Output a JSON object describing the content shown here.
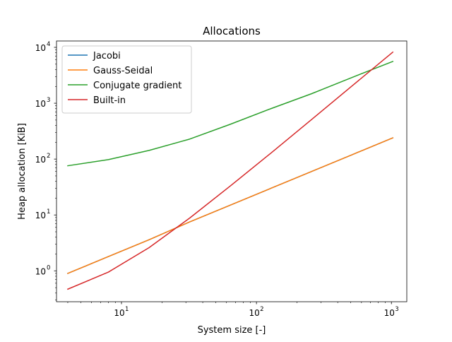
{
  "chart_data": {
    "type": "line",
    "title": "Allocations",
    "xlabel": "System size [-]",
    "ylabel": "Heap allocation [KiB]",
    "xscale": "log",
    "yscale": "log",
    "xlim": [
      3.3,
      1300
    ],
    "ylim": [
      0.28,
      13000
    ],
    "xticks": [
      {
        "base": "10",
        "exp": "1",
        "value": 10
      },
      {
        "base": "10",
        "exp": "2",
        "value": 100
      },
      {
        "base": "10",
        "exp": "3",
        "value": 1000
      }
    ],
    "yticks": [
      {
        "base": "10",
        "exp": "0",
        "value": 1
      },
      {
        "base": "10",
        "exp": "1",
        "value": 10
      },
      {
        "base": "10",
        "exp": "2",
        "value": 100
      },
      {
        "base": "10",
        "exp": "3",
        "value": 1000
      },
      {
        "base": "10",
        "exp": "4",
        "value": 10000
      }
    ],
    "grid": false,
    "legend_position": "top-left",
    "x": [
      4,
      8,
      16,
      32,
      64,
      128,
      256,
      512,
      1024
    ],
    "series": [
      {
        "name": "Jacobi",
        "color": "#1f77b4",
        "values": [
          0.9,
          1.8,
          3.6,
          7.5,
          15,
          30,
          60,
          120,
          240
        ]
      },
      {
        "name": "Gauss-Seidal",
        "color": "#ff7f0e",
        "values": [
          0.9,
          1.8,
          3.6,
          7.5,
          15,
          30,
          60,
          120,
          240
        ]
      },
      {
        "name": "Conjugate gradient",
        "color": "#2ca02c",
        "values": [
          76,
          98,
          143,
          228,
          420,
          800,
          1480,
          2900,
          5600
        ]
      },
      {
        "name": "Built-in",
        "color": "#d62728",
        "values": [
          0.47,
          0.95,
          2.6,
          8.8,
          33,
          128,
          510,
          2050,
          8200
        ]
      }
    ]
  }
}
